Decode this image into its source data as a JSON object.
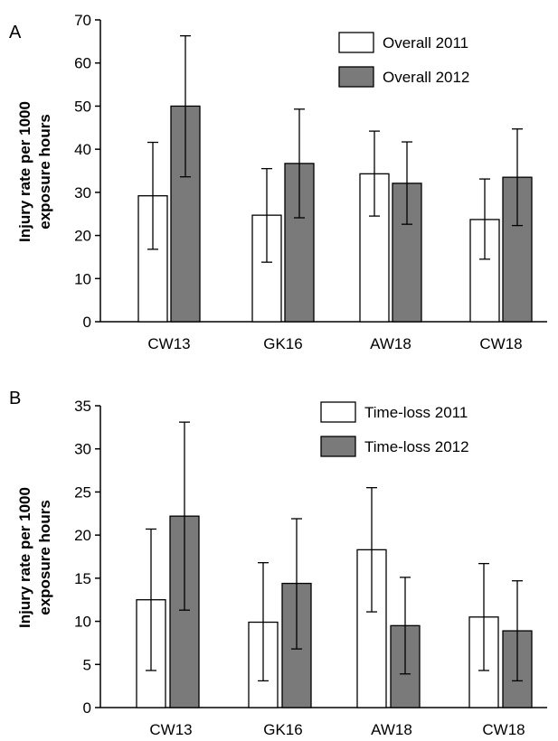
{
  "chart_data": [
    {
      "panel": "A",
      "type": "bar",
      "categories": [
        "CW13",
        "GK16",
        "AW18",
        "CW18"
      ],
      "ylabel_lines": [
        "Injury rate per 1000",
        "exposure hours"
      ],
      "ylim": [
        0,
        70
      ],
      "yticks": [
        0,
        10,
        20,
        30,
        40,
        50,
        60,
        70
      ],
      "legend_position": "top-right",
      "series": [
        {
          "name": "Overall 2011",
          "color": "#ffffff",
          "values": [
            29.2,
            24.7,
            34.3,
            23.7
          ],
          "err_low": [
            16.8,
            13.8,
            24.5,
            14.5
          ],
          "err_high": [
            41.6,
            35.5,
            44.2,
            33.1
          ]
        },
        {
          "name": "Overall 2012",
          "color": "#7a7a7a",
          "values": [
            50.0,
            36.7,
            32.1,
            33.5
          ],
          "err_low": [
            33.6,
            24.1,
            22.6,
            22.3
          ],
          "err_high": [
            66.3,
            49.3,
            41.7,
            44.7
          ]
        }
      ]
    },
    {
      "panel": "B",
      "type": "bar",
      "categories": [
        "CW13",
        "GK16",
        "AW18",
        "CW18"
      ],
      "ylabel_lines": [
        "Injury rate per 1000",
        "exposure hours"
      ],
      "ylim": [
        0,
        35
      ],
      "yticks": [
        0,
        5,
        10,
        15,
        20,
        25,
        30,
        35
      ],
      "legend_position": "top-right",
      "series": [
        {
          "name": "Time-loss 2011",
          "color": "#ffffff",
          "values": [
            12.5,
            9.9,
            18.3,
            10.5
          ],
          "err_low": [
            4.3,
            3.1,
            11.1,
            4.3
          ],
          "err_high": [
            20.7,
            16.8,
            25.5,
            16.7
          ]
        },
        {
          "name": "Time-loss 2012",
          "color": "#7a7a7a",
          "values": [
            22.2,
            14.4,
            9.5,
            8.9
          ],
          "err_low": [
            11.3,
            6.8,
            3.9,
            3.1
          ],
          "err_high": [
            33.1,
            21.9,
            15.1,
            14.7
          ]
        }
      ]
    }
  ]
}
